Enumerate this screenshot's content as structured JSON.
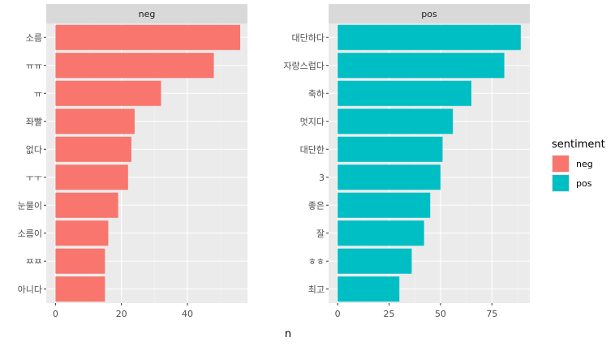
{
  "chart_data": {
    "type": "bar",
    "orientation": "horizontal",
    "xlabel": "n",
    "ylabel": "",
    "grid": true,
    "legend": {
      "title": "sentiment",
      "position": "right",
      "entries": [
        {
          "label": "neg",
          "color": "#F8766D"
        },
        {
          "label": "pos",
          "color": "#00BFC4"
        }
      ]
    },
    "panels": [
      {
        "title": "neg",
        "color": "#F8766D",
        "xlim": [
          -2.8,
          58.2
        ],
        "xticks": [
          0,
          20,
          40
        ],
        "categories": [
          "소름",
          "ㅠㅠ",
          "ㅠ",
          "좌빨",
          "없다",
          "ㅜㅜ",
          "눈물이",
          "소름이",
          "ㅉㅉ",
          "아니다"
        ],
        "values": [
          56,
          48,
          32,
          24,
          23,
          22,
          19,
          16,
          15,
          15
        ]
      },
      {
        "title": "pos",
        "color": "#00BFC4",
        "xlim": [
          -4.4,
          93.4
        ],
        "xticks": [
          0,
          25,
          50,
          75
        ],
        "categories": [
          "대단하다",
          "자랑스럽다",
          "축하",
          "멋지다",
          "대단한",
          "3",
          "좋은",
          "잘",
          "ㅎㅎ",
          "최고"
        ],
        "values": [
          89,
          81,
          65,
          56,
          51,
          50,
          45,
          42,
          36,
          30
        ]
      }
    ]
  }
}
